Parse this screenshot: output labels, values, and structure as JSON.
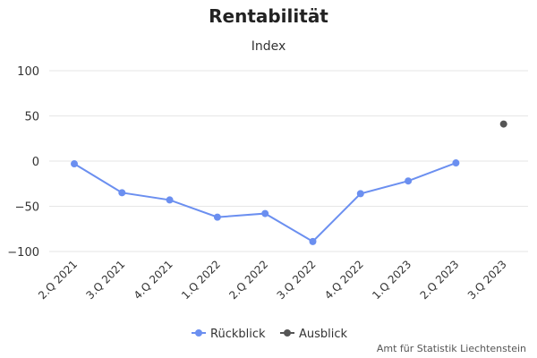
{
  "chart_data": {
    "type": "line",
    "title": "Rentabilität",
    "subtitle": "Index",
    "categories": [
      "2.Q 2021",
      "3.Q 2021",
      "4.Q 2021",
      "1.Q 2022",
      "2.Q 2022",
      "3.Q 2022",
      "4.Q 2022",
      "1.Q 2023",
      "2.Q 2023",
      "3.Q 2023"
    ],
    "series": [
      {
        "name": "Rückblick",
        "color": "#6b8ff0",
        "values": [
          -3,
          -35,
          -43,
          -62,
          -58,
          -89,
          -36,
          -22,
          -2,
          null
        ]
      },
      {
        "name": "Ausblick",
        "color": "#555555",
        "values": [
          null,
          null,
          null,
          null,
          null,
          null,
          null,
          null,
          null,
          41
        ]
      }
    ],
    "yticks": [
      100,
      50,
      0,
      -50,
      -100
    ],
    "ylim": [
      -100,
      100
    ],
    "grid": true,
    "legend": "bottom-center"
  },
  "credit": "Amt für Statistik Liechtenstein"
}
